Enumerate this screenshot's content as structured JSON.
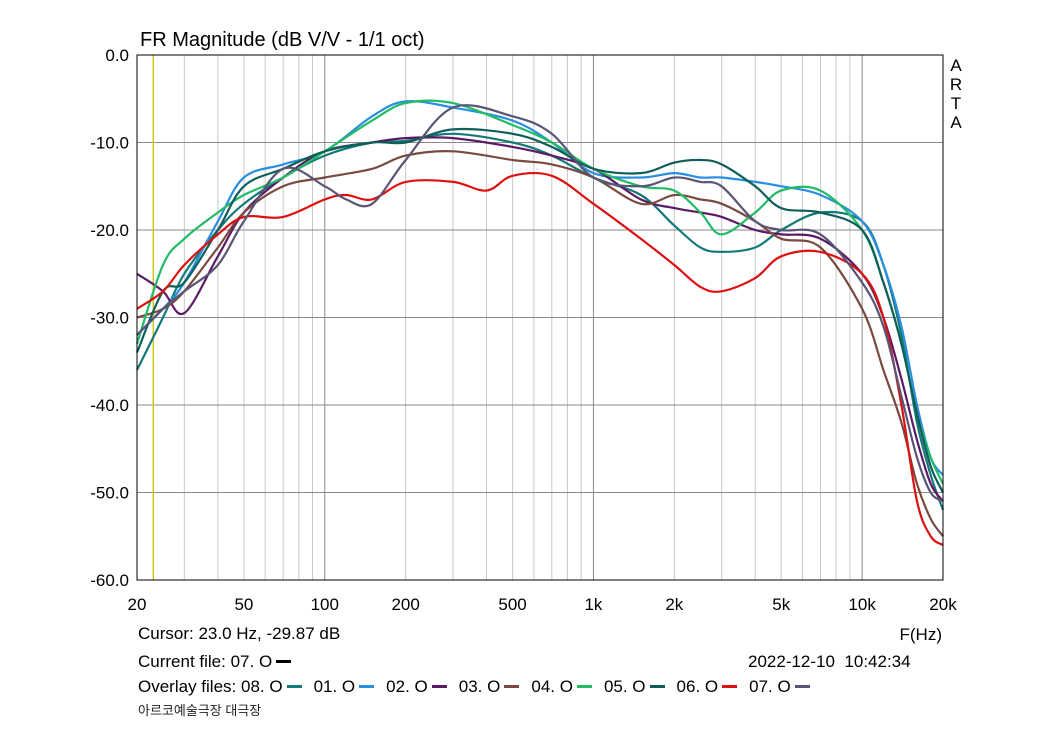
{
  "chart_data": {
    "type": "line",
    "title": "FR Magnitude (dB V/V - 1/1 oct)",
    "watermark": "ARTA",
    "xlabel": "F(Hz)",
    "ylabel": "",
    "x_scale": "log",
    "xlim": [
      20,
      20000
    ],
    "ylim": [
      -60,
      0
    ],
    "grid": true,
    "x_ticks": [
      20,
      50,
      100,
      200,
      500,
      1000,
      2000,
      5000,
      10000,
      20000
    ],
    "x_tick_labels": [
      "20",
      "50",
      "100",
      "200",
      "500",
      "1k",
      "2k",
      "5k",
      "10k",
      "20k"
    ],
    "y_ticks": [
      0,
      -10,
      -20,
      -30,
      -40,
      -50,
      -60
    ],
    "y_tick_labels": [
      "0.0",
      "-10.0",
      "-20.0",
      "-30.0",
      "-40.0",
      "-50.0",
      "-60.0"
    ],
    "cursor_marker_x": 23.0,
    "series": [
      {
        "name": "08. O",
        "color": "#137a78",
        "x": [
          20,
          25,
          30,
          40,
          50,
          70,
          100,
          150,
          200,
          300,
          500,
          700,
          1000,
          1500,
          2000,
          2500,
          3000,
          4000,
          5000,
          7000,
          10000,
          12000,
          14000,
          16000,
          18000,
          20000
        ],
        "y": [
          -36,
          -30,
          -25,
          -20,
          -17,
          -14,
          -11.5,
          -10,
          -9.8,
          -9,
          -10,
          -11.5,
          -14,
          -16,
          -19.5,
          -22,
          -22.5,
          -22,
          -20,
          -18,
          -19,
          -24,
          -32,
          -42,
          -48,
          -52
        ]
      },
      {
        "name": "01. O",
        "color": "#2a8ee0",
        "x": [
          20,
          25,
          30,
          40,
          50,
          70,
          100,
          150,
          200,
          300,
          500,
          700,
          1000,
          1500,
          2000,
          2500,
          3000,
          4000,
          5000,
          7000,
          10000,
          12000,
          14000,
          16000,
          18000,
          20000
        ],
        "y": [
          -32,
          -29,
          -26,
          -19,
          -14,
          -12.5,
          -11,
          -7,
          -5.3,
          -6,
          -7.5,
          -10,
          -13.5,
          -14,
          -13.5,
          -14,
          -14,
          -14.5,
          -15,
          -16,
          -19,
          -24,
          -31,
          -40,
          -46,
          -48
        ]
      },
      {
        "name": "02. O",
        "color": "#5c1a66",
        "x": [
          20,
          25,
          30,
          40,
          50,
          70,
          100,
          150,
          200,
          300,
          500,
          700,
          1000,
          1500,
          2000,
          2500,
          3000,
          4000,
          5000,
          7000,
          10000,
          12000,
          14000,
          16000,
          18000,
          20000
        ],
        "y": [
          -25,
          -27,
          -29.5,
          -23,
          -18,
          -14,
          -11,
          -10,
          -9.5,
          -9.5,
          -10.5,
          -11.5,
          -13,
          -16.5,
          -17.5,
          -18,
          -18.5,
          -20,
          -20.5,
          -21,
          -25,
          -30,
          -37,
          -44,
          -49,
          -51
        ]
      },
      {
        "name": "03. O",
        "color": "#7a4a40",
        "x": [
          20,
          25,
          30,
          40,
          50,
          70,
          100,
          150,
          200,
          300,
          500,
          700,
          1000,
          1500,
          2000,
          2500,
          3000,
          4000,
          5000,
          7000,
          10000,
          12000,
          14000,
          16000,
          18000,
          20000
        ],
        "y": [
          -30,
          -29,
          -27,
          -22,
          -18,
          -15,
          -14,
          -13,
          -11.5,
          -11,
          -12,
          -12.5,
          -14,
          -17,
          -16,
          -16.5,
          -17,
          -19,
          -21,
          -22,
          -29,
          -36,
          -42,
          -49,
          -53,
          -55
        ]
      },
      {
        "name": "04. O",
        "color": "#22bb66",
        "x": [
          20,
          25,
          30,
          40,
          50,
          70,
          100,
          150,
          200,
          300,
          500,
          700,
          1000,
          1500,
          2000,
          2500,
          3000,
          4000,
          5000,
          7000,
          10000,
          12000,
          14000,
          16000,
          18000,
          20000
        ],
        "y": [
          -33,
          -24,
          -21,
          -18,
          -16,
          -14,
          -11,
          -7.5,
          -5.5,
          -5.5,
          -8,
          -10,
          -13,
          -15,
          -15.5,
          -18,
          -20.5,
          -18,
          -15.5,
          -15.5,
          -20,
          -26,
          -33,
          -41,
          -46,
          -49
        ]
      },
      {
        "name": "05. O",
        "color": "#0f5e5a",
        "x": [
          20,
          25,
          30,
          40,
          50,
          70,
          100,
          150,
          200,
          300,
          500,
          700,
          1000,
          1500,
          2000,
          2500,
          3000,
          4000,
          5000,
          7000,
          10000,
          12000,
          14000,
          16000,
          18000,
          20000
        ],
        "y": [
          -34,
          -27,
          -26,
          -20,
          -15,
          -13,
          -11,
          -10,
          -10,
          -8.5,
          -9,
          -10.5,
          -13,
          -13.5,
          -12.3,
          -12,
          -12.5,
          -15,
          -17.5,
          -18,
          -20,
          -26,
          -33,
          -41,
          -47,
          -50
        ]
      },
      {
        "name": "06. O",
        "color": "#dd1111",
        "x": [
          20,
          25,
          30,
          40,
          50,
          70,
          100,
          120,
          150,
          200,
          300,
          400,
          500,
          700,
          1000,
          1500,
          2000,
          2500,
          3000,
          4000,
          5000,
          7000,
          10000,
          12000,
          14000,
          16000,
          18000,
          20000
        ],
        "y": [
          -29,
          -27,
          -24,
          -20.5,
          -18.5,
          -18.5,
          -16.5,
          -16,
          -16.5,
          -14.5,
          -14.5,
          -15.5,
          -13.8,
          -13.8,
          -17,
          -21,
          -24,
          -26.5,
          -27,
          -25.5,
          -23,
          -22.5,
          -25,
          -30,
          -40,
          -51,
          -55,
          -56
        ]
      },
      {
        "name": "07. O",
        "color": "#5a5575",
        "x": [
          20,
          25,
          30,
          40,
          50,
          70,
          100,
          120,
          150,
          200,
          300,
          500,
          700,
          1000,
          1500,
          2000,
          2500,
          3000,
          4000,
          5000,
          7000,
          10000,
          12000,
          14000,
          16000,
          18000,
          20000
        ],
        "y": [
          -32,
          -29,
          -27,
          -24,
          -19,
          -13,
          -15,
          -16.5,
          -17,
          -12,
          -6,
          -7,
          -9,
          -14,
          -15,
          -14,
          -14.5,
          -15,
          -19,
          -20,
          -20.5,
          -26,
          -31,
          -39,
          -46,
          -50,
          -51
        ]
      }
    ]
  },
  "footer": {
    "cursor": "Cursor: 23.0 Hz, -29.87 dB",
    "current_file_label": "Current file: 07. O",
    "current_file_color": "#000000",
    "date": "2022-12-10",
    "time": "10:42:34",
    "overlay_label": "Overlay files:",
    "overlay_entries": [
      {
        "label": "08. O",
        "color": "#137a78"
      },
      {
        "label": "01. O",
        "color": "#2a8ee0"
      },
      {
        "label": "02. O",
        "color": "#5c1a66"
      },
      {
        "label": "03. O",
        "color": "#7a4a40"
      },
      {
        "label": "04. O",
        "color": "#22bb66"
      },
      {
        "label": "05. O",
        "color": "#0f5e5a"
      },
      {
        "label": "06. O",
        "color": "#dd1111"
      },
      {
        "label": "07. O",
        "color": "#5a5575"
      }
    ],
    "venue": "아르코예술극장 대극장"
  }
}
